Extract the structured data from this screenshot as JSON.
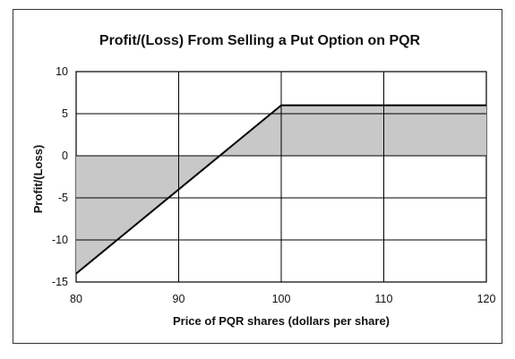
{
  "chart_data": {
    "type": "area",
    "title": "Profit/(Loss) From Selling a Put Option on PQR",
    "xlabel": "Price of PQR shares (dollars per share)",
    "ylabel": "Profit/(Loss)",
    "xlim": [
      80,
      120
    ],
    "ylim": [
      -15,
      10
    ],
    "x_ticks": [
      80,
      90,
      100,
      110,
      120
    ],
    "y_ticks": [
      10,
      5,
      0,
      -5,
      -10,
      -15
    ],
    "grid": true,
    "legend": "none",
    "series": [
      {
        "x": [
          80,
          100,
          120
        ],
        "values": [
          -14,
          6,
          6
        ]
      }
    ],
    "fill_to": 0,
    "colors": {
      "fill": "#c8c8c8",
      "line": "#000000",
      "grid": "#000000"
    }
  }
}
